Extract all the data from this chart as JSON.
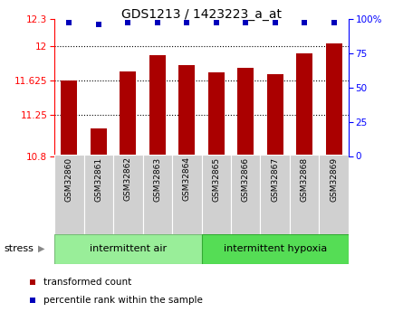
{
  "title": "GDS1213 / 1423223_a_at",
  "samples": [
    "GSM32860",
    "GSM32861",
    "GSM32862",
    "GSM32863",
    "GSM32864",
    "GSM32865",
    "GSM32866",
    "GSM32867",
    "GSM32868",
    "GSM32869"
  ],
  "bar_values": [
    11.625,
    11.1,
    11.72,
    11.9,
    11.79,
    11.71,
    11.76,
    11.69,
    11.92,
    12.03
  ],
  "percentile_values": [
    97,
    96,
    97,
    97,
    97,
    97,
    97,
    97,
    97,
    97
  ],
  "bar_color": "#AA0000",
  "percentile_color": "#0000BB",
  "ylim_left": [
    10.8,
    12.3
  ],
  "ylim_right": [
    0,
    100
  ],
  "yticks_left": [
    10.8,
    11.25,
    11.625,
    12.0,
    12.3
  ],
  "yticks_right": [
    0,
    25,
    50,
    75,
    100
  ],
  "ytick_labels_left": [
    "10.8",
    "11.25",
    "11.625",
    "12",
    "12.3"
  ],
  "ytick_labels_right": [
    "0",
    "25",
    "50",
    "75",
    "100%"
  ],
  "group1_label": "intermittent air",
  "group2_label": "intermittent hypoxia",
  "group1_color": "#99EE99",
  "group2_color": "#55DD55",
  "stress_label": "stress",
  "legend_bar_label": "transformed count",
  "legend_pct_label": "percentile rank within the sample",
  "dotted_line_yticks": [
    11.25,
    11.625,
    12.0
  ]
}
